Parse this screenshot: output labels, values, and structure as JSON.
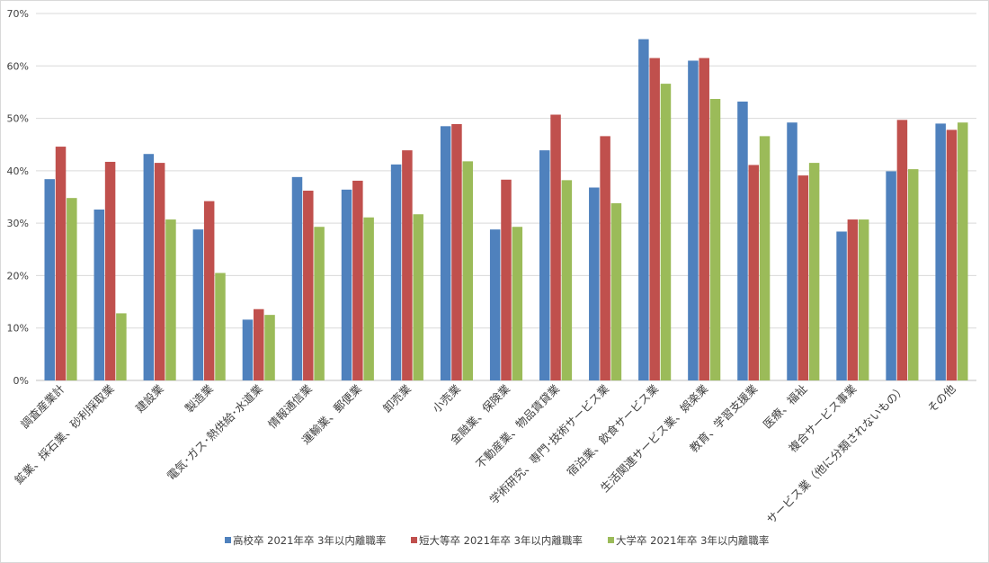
{
  "chart_data": {
    "type": "bar",
    "title": "",
    "xlabel": "",
    "ylabel": "",
    "ylim": [
      0,
      70
    ],
    "y_ticks": [
      "0%",
      "10%",
      "20%",
      "30%",
      "40%",
      "50%",
      "60%",
      "70%"
    ],
    "grid": true,
    "legend_position": "bottom",
    "categories": [
      "調査産業計",
      "鉱業、採石業、砂利採取業",
      "建設業",
      "製造業",
      "電気･ガス･熱供給･水道業",
      "情報通信業",
      "運輸業、郵便業",
      "卸売業",
      "小売業",
      "金融業、保険業",
      "不動産業、物品賃貸業",
      "学術研究、専門･技術サービス業",
      "宿泊業、飲食サービス業",
      "生活関連サービス業、娯楽業",
      "教育、学習支援業",
      "医療、福祉",
      "複合サービス事業",
      "サービス業（他に分類されないもの）",
      "その他"
    ],
    "series": [
      {
        "name": "高校卒 2021年卒 3年以内離職率",
        "color": "#4f81bd",
        "values": [
          38.4,
          32.6,
          43.2,
          28.8,
          11.6,
          38.8,
          36.4,
          41.2,
          48.5,
          28.8,
          43.9,
          36.8,
          65.1,
          61.0,
          53.2,
          49.2,
          28.4,
          39.9,
          49.0
        ]
      },
      {
        "name": "短大等卒 2021年卒 3年以内離職率",
        "color": "#c0504d",
        "values": [
          44.6,
          41.7,
          41.5,
          34.2,
          13.6,
          36.2,
          38.1,
          43.9,
          48.9,
          38.3,
          50.7,
          46.6,
          61.5,
          61.5,
          41.1,
          39.1,
          30.7,
          49.7,
          47.8
        ]
      },
      {
        "name": "大学卒 2021年卒 3年以内離職率",
        "color": "#9bbb59",
        "values": [
          34.8,
          12.8,
          30.7,
          20.5,
          12.5,
          29.3,
          31.1,
          31.7,
          41.8,
          29.3,
          38.2,
          33.8,
          56.6,
          53.7,
          46.6,
          41.5,
          30.7,
          40.3,
          49.2
        ]
      }
    ]
  }
}
